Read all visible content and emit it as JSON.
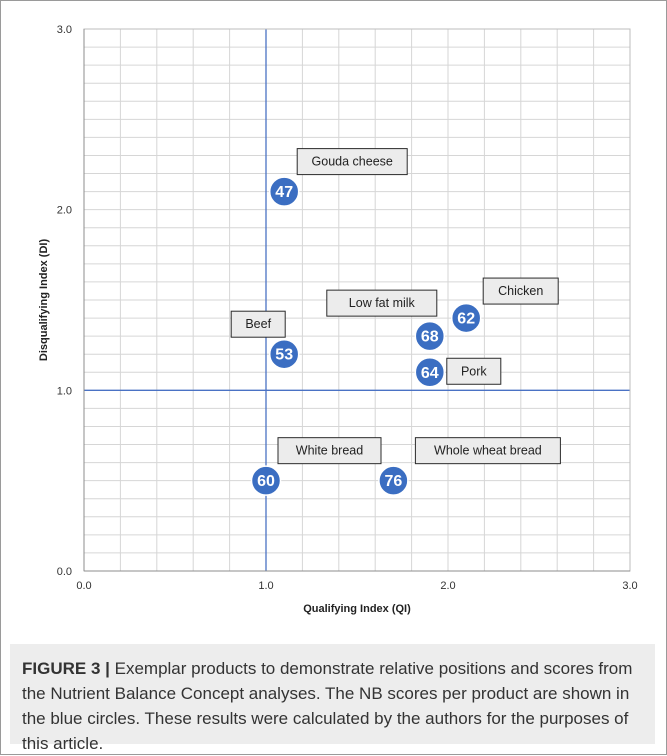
{
  "chart_data": {
    "type": "scatter",
    "xlabel": "Qualifying Index (QI)",
    "ylabel": "Disqualifying Index (DI)",
    "xlim": [
      0,
      3
    ],
    "ylim": [
      0,
      3
    ],
    "x_ticks": [
      "0.0",
      "1.0",
      "2.0",
      "3.0"
    ],
    "y_ticks": [
      "0.0",
      "1.0",
      "2.0",
      "3.0"
    ],
    "grid": true,
    "reference_lines": {
      "x": 1.0,
      "y": 1.0
    },
    "marker_color": "#3b6ec2",
    "reference_line_color": "#4a72c4",
    "points": [
      {
        "name": "Gouda cheese",
        "x": 1.1,
        "y": 2.1,
        "score": "47"
      },
      {
        "name": "Beef",
        "x": 1.1,
        "y": 1.2,
        "score": "53"
      },
      {
        "name": "Low fat milk",
        "x": 1.9,
        "y": 1.3,
        "score": "68"
      },
      {
        "name": "Chicken",
        "x": 2.1,
        "y": 1.4,
        "score": "62"
      },
      {
        "name": "Pork",
        "x": 1.9,
        "y": 1.1,
        "score": "64"
      },
      {
        "name": "White bread",
        "x": 1.0,
        "y": 0.5,
        "score": "60"
      },
      {
        "name": "Whole wheat bread",
        "x": 1.7,
        "y": 0.5,
        "score": "76"
      }
    ]
  },
  "caption": {
    "label": "FIGURE 3 |",
    "text": "Exemplar products to demonstrate relative positions and scores from the Nutrient Balance Concept analyses. The NB scores per product are shown in the blue circles. These results were calculated by the authors for the purposes of this article."
  }
}
